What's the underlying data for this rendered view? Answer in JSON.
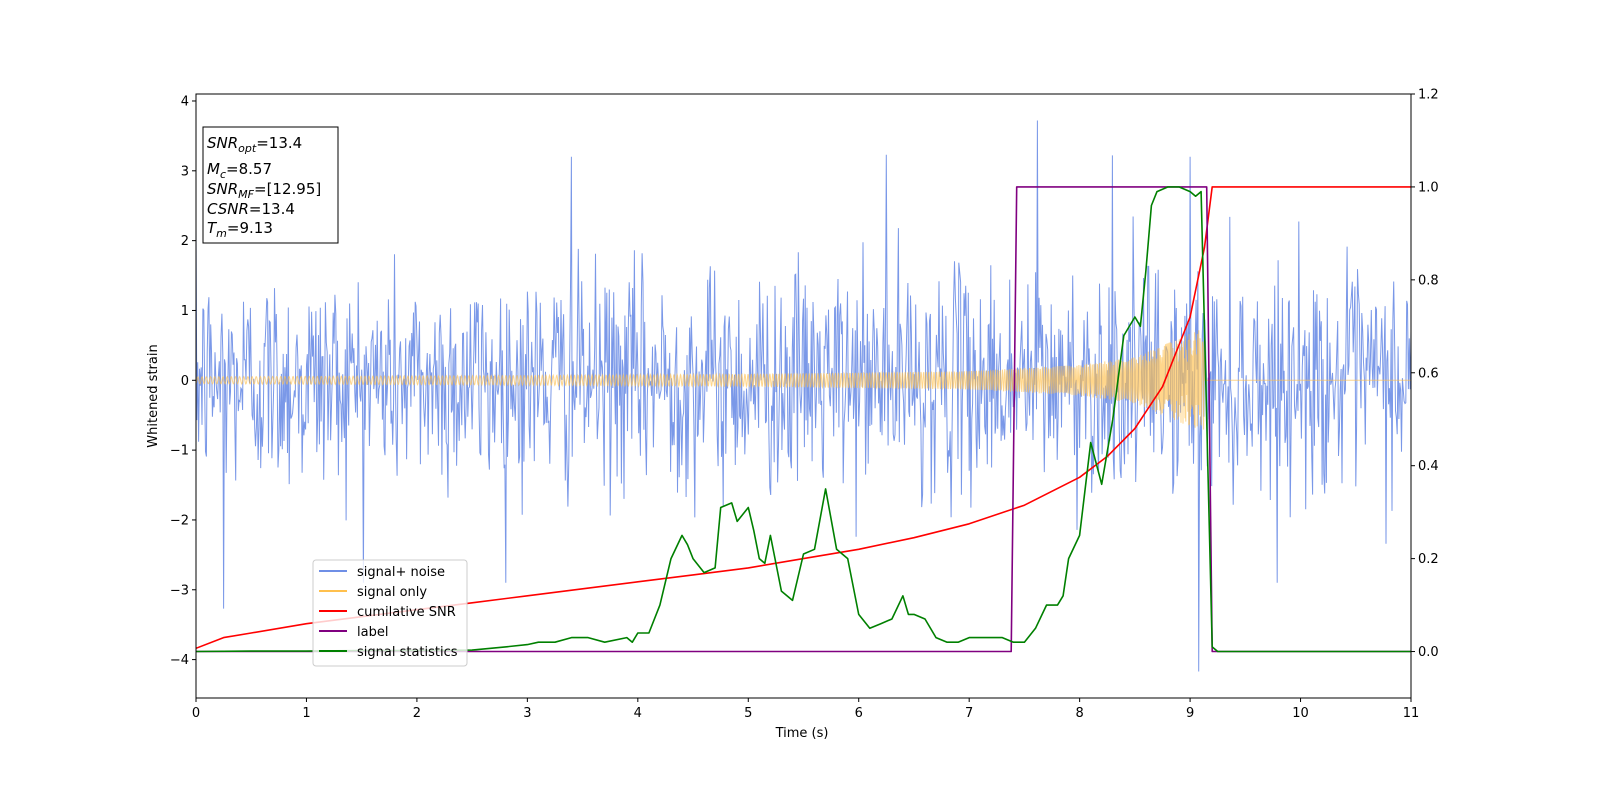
{
  "chart_data": {
    "type": "line",
    "xlabel": "Time (s)",
    "ylabel": "Whitened strain",
    "xlim": [
      0,
      11
    ],
    "ylim": [
      -4.55,
      4.1
    ],
    "y2lim": [
      -0.1,
      1.2
    ],
    "x_ticks": [
      "0",
      "1",
      "2",
      "3",
      "4",
      "5",
      "6",
      "7",
      "8",
      "9",
      "10",
      "11"
    ],
    "y_ticks": [
      "−4",
      "−3",
      "−2",
      "−1",
      "0",
      "1",
      "2",
      "3",
      "4"
    ],
    "y2_ticks": [
      "0.0",
      "0.2",
      "0.4",
      "0.6",
      "0.8",
      "1.0",
      "1.2"
    ],
    "grid": false,
    "legend_placement": "lower-left",
    "annotation": {
      "snr_opt": {
        "base": "SNR",
        "sub": "opt",
        "value": "=13.4"
      },
      "mc": {
        "base": "M",
        "sub": "c",
        "value": "=8.57"
      },
      "snr_mf": {
        "base": "SNR",
        "sub": "MF",
        "value": "=[12.95]"
      },
      "csnr": {
        "base": "CSNR",
        "sub": "",
        "value": "=13.4"
      },
      "tm": {
        "base": "T",
        "sub": "m",
        "value": "=9.13"
      }
    },
    "series": [
      {
        "name": "signal+ noise",
        "axis": "left",
        "color": "#6f8fe6",
        "kind": "noise",
        "std": 0.78,
        "sample_rate_hz": 256,
        "notable_spikes": [
          [
            0.25,
            -3.27
          ],
          [
            7.62,
            3.72
          ],
          [
            9.08,
            -4.17
          ],
          [
            3.4,
            3.2
          ],
          [
            6.25,
            3.23
          ],
          [
            8.3,
            3.22
          ],
          [
            9.0,
            3.2
          ]
        ]
      },
      {
        "name": "signal only",
        "axis": "left",
        "color": "#ffc04d",
        "kind": "chirp",
        "merger_time": 9.13,
        "amplitude_at": [
          [
            0,
            0.05
          ],
          [
            3,
            0.07
          ],
          [
            5,
            0.09
          ],
          [
            7,
            0.13
          ],
          [
            8,
            0.22
          ],
          [
            8.5,
            0.33
          ],
          [
            8.9,
            0.6
          ],
          [
            9.13,
            0.75
          ],
          [
            9.14,
            0
          ]
        ]
      },
      {
        "name": "cumilative SNR",
        "axis": "right",
        "color": "#ff0000",
        "x": [
          0,
          0.25,
          0.5,
          1,
          1.5,
          2,
          2.5,
          3,
          3.5,
          4,
          4.5,
          5,
          5.5,
          6,
          6.5,
          7,
          7.5,
          8,
          8.25,
          8.5,
          8.75,
          9,
          9.13,
          9.2,
          11
        ],
        "y": [
          0.007,
          0.03,
          0.04,
          0.06,
          0.075,
          0.09,
          0.105,
          0.12,
          0.135,
          0.15,
          0.165,
          0.18,
          0.2,
          0.22,
          0.245,
          0.275,
          0.315,
          0.375,
          0.42,
          0.48,
          0.57,
          0.72,
          0.87,
          1.0,
          1.0
        ]
      },
      {
        "name": "label",
        "axis": "right",
        "color": "#800080",
        "x": [
          0,
          7.38,
          7.43,
          9.15,
          9.2,
          11
        ],
        "y": [
          0,
          0,
          1,
          1,
          0,
          0
        ]
      },
      {
        "name": "signal statistics",
        "axis": "right",
        "color": "#008000",
        "x": [
          0,
          0.5,
          1,
          1.5,
          2,
          2.5,
          2.8,
          3.0,
          3.1,
          3.25,
          3.4,
          3.55,
          3.7,
          3.9,
          3.95,
          4.0,
          4.1,
          4.2,
          4.3,
          4.4,
          4.45,
          4.5,
          4.6,
          4.7,
          4.75,
          4.85,
          4.9,
          5.0,
          5.05,
          5.1,
          5.15,
          5.2,
          5.3,
          5.4,
          5.5,
          5.6,
          5.7,
          5.8,
          5.9,
          6.0,
          6.1,
          6.2,
          6.3,
          6.4,
          6.45,
          6.5,
          6.6,
          6.7,
          6.8,
          6.9,
          7.0,
          7.1,
          7.2,
          7.3,
          7.4,
          7.5,
          7.6,
          7.7,
          7.8,
          7.85,
          7.9,
          8.0,
          8.1,
          8.2,
          8.3,
          8.4,
          8.5,
          8.55,
          8.6,
          8.65,
          8.7,
          8.8,
          8.9,
          9.0,
          9.05,
          9.1,
          9.15,
          9.2,
          9.25,
          11
        ],
        "y": [
          0,
          0.001,
          0.001,
          0.002,
          0.002,
          0.003,
          0.01,
          0.015,
          0.02,
          0.02,
          0.03,
          0.03,
          0.02,
          0.03,
          0.02,
          0.04,
          0.04,
          0.1,
          0.2,
          0.25,
          0.23,
          0.2,
          0.17,
          0.18,
          0.31,
          0.32,
          0.28,
          0.31,
          0.26,
          0.2,
          0.19,
          0.25,
          0.13,
          0.11,
          0.21,
          0.22,
          0.35,
          0.22,
          0.2,
          0.08,
          0.05,
          0.06,
          0.07,
          0.12,
          0.08,
          0.08,
          0.07,
          0.03,
          0.02,
          0.02,
          0.03,
          0.03,
          0.03,
          0.03,
          0.02,
          0.02,
          0.05,
          0.1,
          0.1,
          0.12,
          0.2,
          0.25,
          0.45,
          0.36,
          0.5,
          0.68,
          0.72,
          0.7,
          0.82,
          0.96,
          0.99,
          1.0,
          1.0,
          0.99,
          0.98,
          0.99,
          0.5,
          0.01,
          0.0,
          0.0
        ]
      }
    ]
  }
}
